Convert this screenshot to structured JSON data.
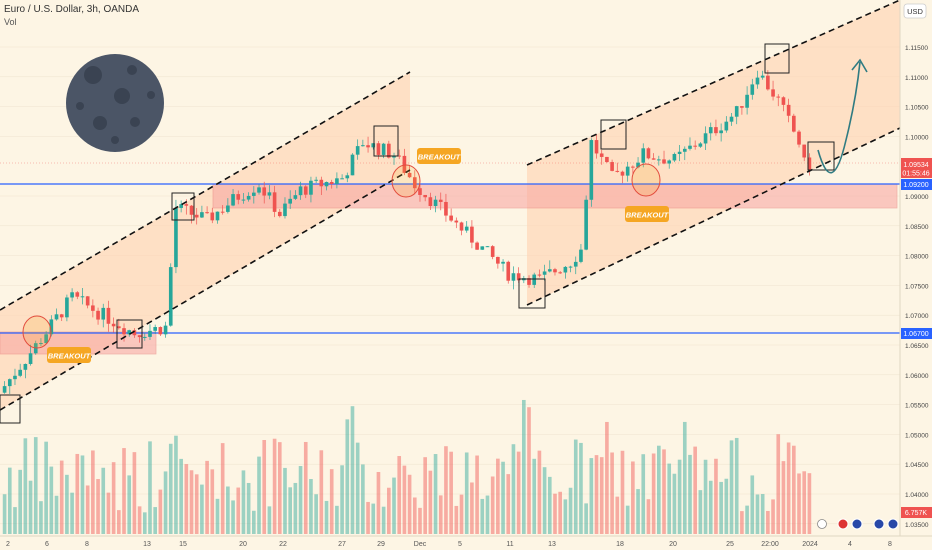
{
  "header": {
    "symbol": "Euro / U.S. Dollar, 3h, OANDA",
    "volume_label": "Vol",
    "currency": "USD"
  },
  "annotations": {
    "breakout": "BREAKOUT",
    "last_price": "1.09534",
    "countdown": "01:55:46",
    "level_upper": "1.09200",
    "level_lower": "1.06700",
    "volume_value": "6.757K"
  },
  "colors": {
    "background": "#fdf5e4",
    "up": "#26a69a",
    "down": "#ef5350",
    "channel_fill": "#ffd2b0",
    "zone_fill": "#f8a3a0",
    "level_line": "#2962ff",
    "breakout_badge": "#f5a623",
    "arrow": "#2f7b82"
  },
  "chart_data": {
    "type": "candlestick",
    "title": "Euro / U.S. Dollar, 3h, OANDA",
    "x_tick_labels": [
      "2",
      "6",
      "8",
      "13",
      "15",
      "20",
      "22",
      "27",
      "29",
      "Dec",
      "5",
      "11",
      "13",
      "18",
      "20",
      "25",
      "22:00",
      "2024",
      "4",
      "8"
    ],
    "y_tick_labels": [
      "1.11500",
      "1.11000",
      "1.10500",
      "1.10000",
      "1.09000",
      "1.08500",
      "1.08000",
      "1.07500",
      "1.07000",
      "1.06500",
      "1.06000",
      "1.05500",
      "1.05000",
      "1.04500",
      "1.04000",
      "1.03500"
    ],
    "ylim": [
      1.033,
      1.122
    ],
    "price_path": [
      [
        0,
        1.057
      ],
      [
        8,
        1.066
      ],
      [
        14,
        1.073
      ],
      [
        20,
        1.07
      ],
      [
        26,
        1.067
      ],
      [
        32,
        1.068
      ],
      [
        34,
        1.088
      ],
      [
        40,
        1.086
      ],
      [
        46,
        1.09
      ],
      [
        50,
        1.092
      ],
      [
        54,
        1.087
      ],
      [
        58,
        1.091
      ],
      [
        66,
        1.093
      ],
      [
        70,
        1.099
      ],
      [
        76,
        1.097
      ],
      [
        80,
        1.092
      ],
      [
        86,
        1.087
      ],
      [
        92,
        1.082
      ],
      [
        98,
        1.077
      ],
      [
        104,
        1.076
      ],
      [
        110,
        1.079
      ],
      [
        112,
        1.081
      ],
      [
        114,
        1.099
      ],
      [
        118,
        1.093
      ],
      [
        124,
        1.097
      ],
      [
        130,
        1.096
      ],
      [
        136,
        1.1
      ],
      [
        142,
        1.104
      ],
      [
        146,
        1.111
      ],
      [
        150,
        1.106
      ],
      [
        154,
        1.099
      ],
      [
        155,
        1.0953
      ]
    ],
    "n_bars": 156,
    "levels": [
      1.092,
      1.067
    ],
    "last_price": 1.09534
  }
}
